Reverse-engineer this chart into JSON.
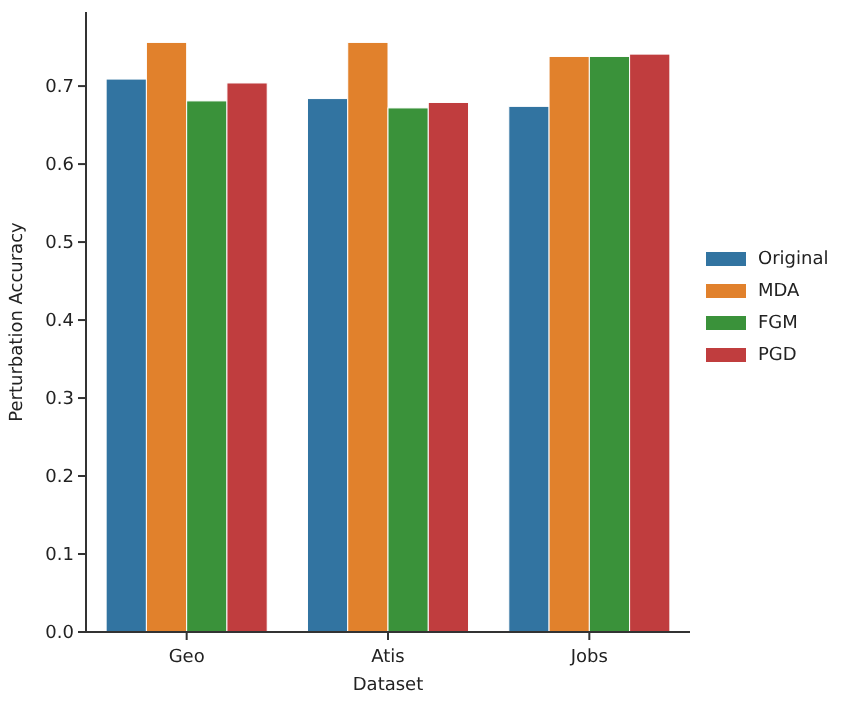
{
  "chart_data": {
    "type": "bar",
    "xlabel": "Dataset",
    "ylabel": "Perturbation Accuracy",
    "categories": [
      "Geo",
      "Atis",
      "Jobs"
    ],
    "series": [
      {
        "name": "Original",
        "color": "#3274a1",
        "values": [
          0.709,
          0.684,
          0.674
        ]
      },
      {
        "name": "MDA",
        "color": "#e1812c",
        "values": [
          0.756,
          0.756,
          0.738
        ]
      },
      {
        "name": "FGM",
        "color": "#3a923a",
        "values": [
          0.681,
          0.672,
          0.738
        ]
      },
      {
        "name": "PGD",
        "color": "#c03d3e",
        "values": [
          0.704,
          0.679,
          0.741
        ]
      }
    ],
    "ylim": [
      0,
      0.795
    ],
    "yticks": [
      {
        "value": 0,
        "label": "0.0"
      },
      0.1,
      0.2,
      0.3,
      0.4,
      0.5,
      0.6,
      0.7
    ],
    "legend": "right",
    "grid": false
  }
}
